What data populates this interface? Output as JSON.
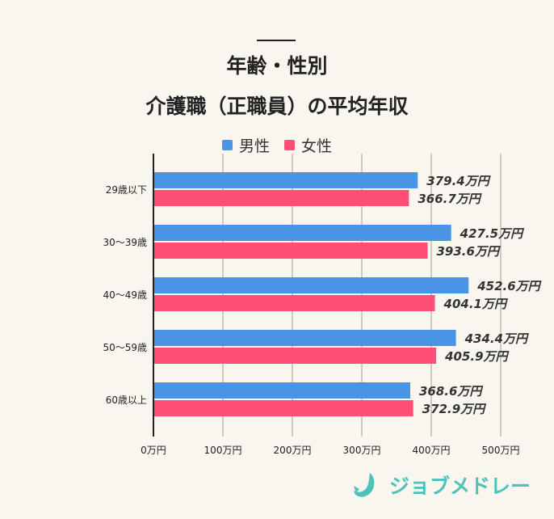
{
  "chart_data": {
    "type": "bar",
    "orientation": "horizontal",
    "title_line1": "年齢・性別",
    "title_line2": "介護職（正職員）の平均年収",
    "categories": [
      "29歳以下",
      "30～39歳",
      "40～49歳",
      "50～59歳",
      "60歳以上"
    ],
    "series": [
      {
        "name": "男性",
        "color": "#4a94e6",
        "values": [
          379.4,
          427.5,
          452.6,
          434.4,
          368.6
        ],
        "labels": [
          "379.4万円",
          "427.5万円",
          "452.6万円",
          "434.4万円",
          "368.6万円"
        ]
      },
      {
        "name": "女性",
        "color": "#ff4f77",
        "values": [
          366.7,
          393.6,
          404.1,
          405.9,
          372.9
        ],
        "labels": [
          "366.7万円",
          "393.6万円",
          "404.1万円",
          "405.9万円",
          "372.9万円"
        ]
      }
    ],
    "xlim": [
      0,
      500
    ],
    "xticks": [
      0,
      100,
      200,
      300,
      400,
      500
    ],
    "xtick_labels": [
      "0万円",
      "100万円",
      "200万円",
      "300万円",
      "400万円",
      "500万円"
    ],
    "grid": true,
    "legend": "top"
  },
  "logo": {
    "text": "ジョブメドレー",
    "color": "#4fc1bb"
  }
}
